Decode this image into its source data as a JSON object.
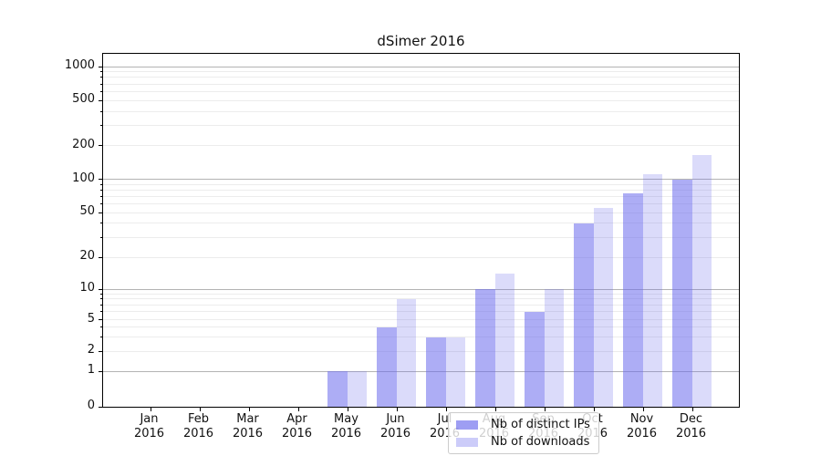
{
  "chart_data": {
    "type": "bar",
    "title": "dSimer 2016",
    "categories": [
      "Jan 2016",
      "Feb 2016",
      "Mar 2016",
      "Apr 2016",
      "May 2016",
      "Jun 2016",
      "Jul 2016",
      "Aug 2016",
      "Sep 2016",
      "Oct 2016",
      "Nov 2016",
      "Dec 2016"
    ],
    "series": [
      {
        "name": "Nb of distinct IPs",
        "color": "#6a6aec",
        "alpha": 0.55,
        "rendered_color": "#adadf5",
        "values": [
          0,
          0,
          0,
          0,
          1,
          4,
          3,
          10,
          6,
          40,
          75,
          100
        ]
      },
      {
        "name": "Nb of downloads",
        "color": "#6a6aec",
        "alpha": 0.24,
        "rendered_color": "#dbdbfb",
        "values": [
          0,
          0,
          0,
          0,
          1,
          8,
          3,
          14,
          10,
          55,
          110,
          165
        ]
      }
    ],
    "y_axis": {
      "scale": "symlog",
      "ticks": [
        0,
        1,
        2,
        5,
        10,
        20,
        50,
        100,
        200,
        500,
        1000
      ],
      "minor_gridlines": [
        2,
        3,
        4,
        5,
        6,
        7,
        8,
        9,
        20,
        30,
        40,
        50,
        60,
        70,
        80,
        90,
        200,
        300,
        400,
        500,
        600,
        700,
        800,
        900
      ],
      "major_gridlines": [
        1,
        10,
        100,
        1000
      ]
    },
    "x_axis": {
      "label_line2": "2016"
    },
    "legend": {
      "position": "lower center-left",
      "entries": [
        "Nb of distinct IPs",
        "Nb of downloads"
      ]
    },
    "grid": "both",
    "colors": {
      "major_grid": "#b3b3b3",
      "minor_grid": "#ececec",
      "axis": "#000000",
      "text": "#111111"
    }
  }
}
